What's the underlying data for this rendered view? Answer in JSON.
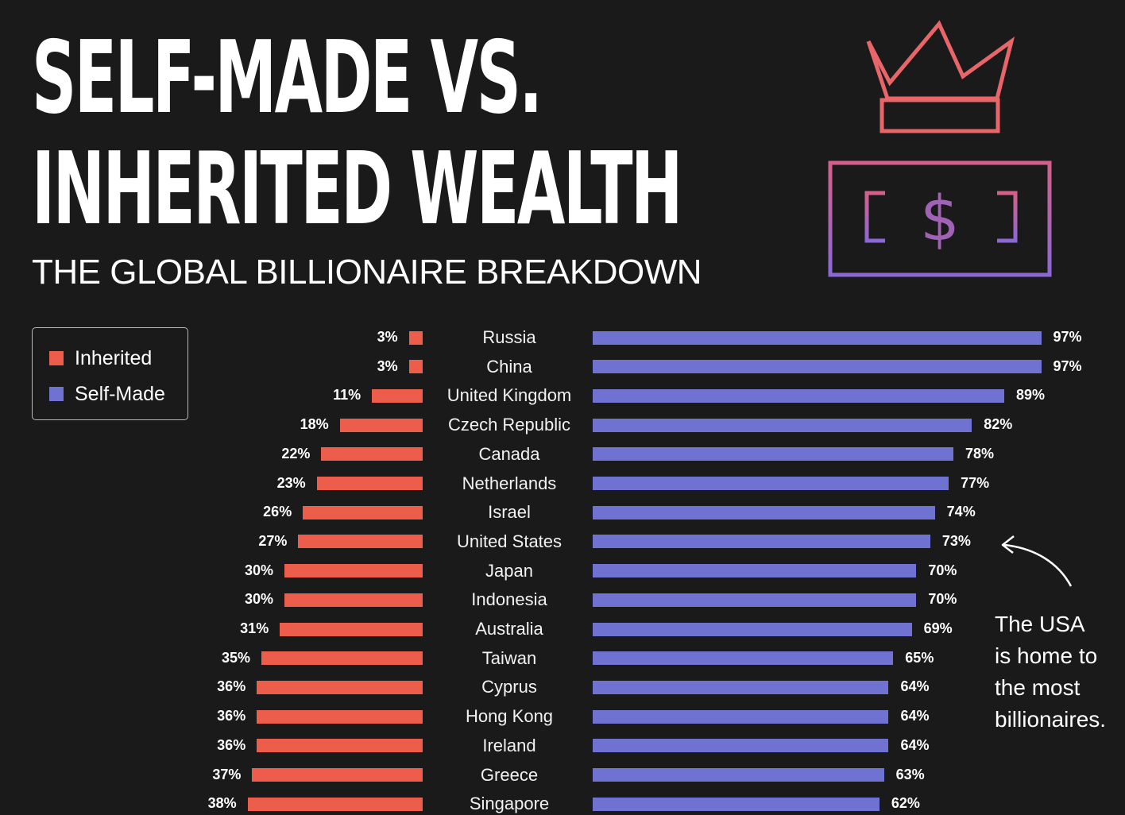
{
  "header": {
    "title_line1": "SELF-MADE VS.",
    "title_line2": "INHERITED WEALTH",
    "subtitle": "THE GLOBAL BILLIONAIRE BREAKDOWN"
  },
  "icons": {
    "crown": "crown-icon",
    "money": "dollar-bill-icon",
    "money_symbol": "[ $ ]"
  },
  "colors": {
    "background": "#1b1a1b",
    "inherited": "#ec5d4b",
    "self_made": "#7072d1",
    "crown_stroke": "#e8666a",
    "bill_stroke_top": "#d4608a",
    "bill_stroke_bottom": "#8b68d6"
  },
  "legend": {
    "inherited_label": "Inherited",
    "self_made_label": "Self-Made"
  },
  "annotation": {
    "line1": "The USA",
    "line2": "is home to",
    "line3": "the most",
    "line4": "billionaires."
  },
  "chart_data": {
    "type": "bar",
    "orientation": "horizontal-diverging",
    "categories": [
      "Russia",
      "China",
      "United Kingdom",
      "Czech Republic",
      "Canada",
      "Netherlands",
      "Israel",
      "United States",
      "Japan",
      "Indonesia",
      "Australia",
      "Taiwan",
      "Cyprus",
      "Hong Kong",
      "Ireland",
      "Greece",
      "Singapore"
    ],
    "series": [
      {
        "name": "Inherited",
        "values": [
          3,
          3,
          11,
          18,
          22,
          23,
          26,
          27,
          30,
          30,
          31,
          35,
          36,
          36,
          36,
          37,
          38
        ],
        "labels": [
          "3%",
          "3%",
          "11%",
          "18%",
          "22%",
          "23%",
          "26%",
          "27%",
          "30%",
          "30%",
          "31%",
          "35%",
          "36%",
          "36%",
          "36%",
          "37%",
          "38%"
        ]
      },
      {
        "name": "Self-Made",
        "values": [
          97,
          97,
          89,
          82,
          78,
          77,
          74,
          73,
          70,
          70,
          69,
          65,
          64,
          64,
          64,
          63,
          62
        ],
        "labels": [
          "97%",
          "97%",
          "89%",
          "82%",
          "78%",
          "77%",
          "74%",
          "73%",
          "70%",
          "70%",
          "69%",
          "65%",
          "64%",
          "64%",
          "64%",
          "63%",
          "62%"
        ]
      }
    ],
    "unit": "%",
    "xlim": [
      0,
      100
    ],
    "legend_position": "top-left",
    "grid": false
  }
}
